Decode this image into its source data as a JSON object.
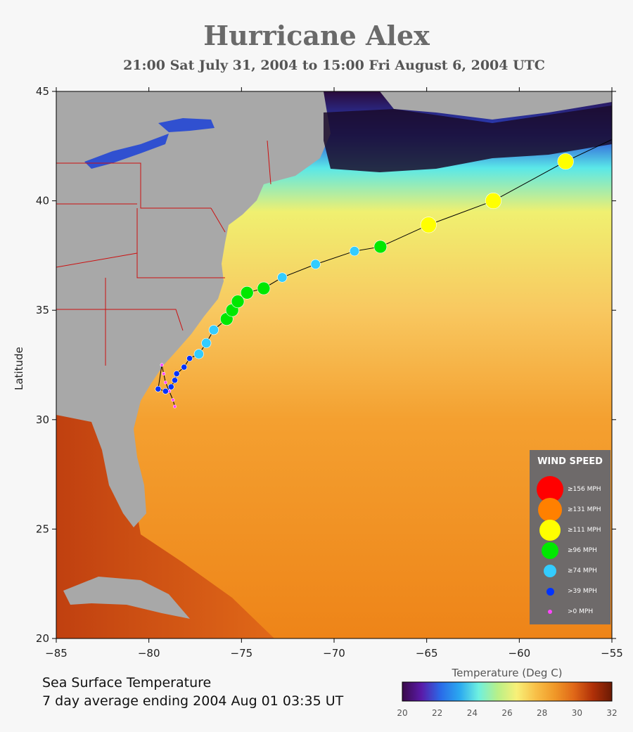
{
  "title": "Hurricane Alex",
  "subtitle": "21:00 Sat July 31, 2004 to 15:00 Fri August  6, 2004  UTC",
  "ylabel": "Latitude",
  "xaxis": {
    "ticks": [
      -85,
      -80,
      -75,
      -70,
      -65,
      -60,
      -55
    ],
    "labels": [
      "−85",
      "−80",
      "−75",
      "−70",
      "−65",
      "−60",
      "−55"
    ]
  },
  "yaxis": {
    "ticks": [
      20,
      25,
      30,
      35,
      40,
      45
    ],
    "labels": [
      "20",
      "25",
      "30",
      "35",
      "40",
      "45"
    ]
  },
  "extent": {
    "lon": [
      -85,
      -55
    ],
    "lat": [
      20,
      45
    ]
  },
  "sst_caption": {
    "line1": "Sea Surface Temperature",
    "line2": "7 day average ending 2004 Aug 01 03:35 UT"
  },
  "colorbar": {
    "title": "Temperature (Deg C)",
    "ticks": [
      20,
      22,
      24,
      26,
      28,
      30,
      32
    ],
    "labels": [
      "20",
      "22",
      "24",
      "26",
      "28",
      "30",
      "32"
    ],
    "colors": [
      "#3a0a4a",
      "#5a1aa8",
      "#2a6ae8",
      "#2aa8f0",
      "#6ef0e0",
      "#b8f088",
      "#f8f078",
      "#f8c048",
      "#f09828",
      "#e06818",
      "#b03008",
      "#6a1a04"
    ]
  },
  "legend": {
    "title": "WIND SPEED",
    "items": [
      {
        "label": "≥156 MPH",
        "color": "#ff0000",
        "size": 38
      },
      {
        "label": "≥131 MPH",
        "color": "#ff8000",
        "size": 34
      },
      {
        "label": "≥111 MPH",
        "color": "#ffff00",
        "size": 30
      },
      {
        "label": "≥96 MPH",
        "color": "#00e800",
        "size": 24
      },
      {
        "label": "≥74 MPH",
        "color": "#33ccff",
        "size": 18
      },
      {
        "label": ">39 MPH",
        "color": "#0033ff",
        "size": 11
      },
      {
        "label": ">0 MPH",
        "color": "#ff44ff",
        "size": 6
      }
    ]
  },
  "track": [
    {
      "lon": -78.6,
      "lat": 30.6,
      "cat": 6
    },
    {
      "lon": -78.7,
      "lat": 30.9,
      "cat": 6
    },
    {
      "lon": -78.9,
      "lat": 31.3,
      "cat": 6
    },
    {
      "lon": -79.1,
      "lat": 31.7,
      "cat": 6
    },
    {
      "lon": -79.2,
      "lat": 32.1,
      "cat": 6
    },
    {
      "lon": -79.3,
      "lat": 32.5,
      "cat": 6
    },
    {
      "lon": -79.5,
      "lat": 31.4,
      "cat": 5
    },
    {
      "lon": -79.1,
      "lat": 31.3,
      "cat": 5
    },
    {
      "lon": -78.8,
      "lat": 31.5,
      "cat": 5
    },
    {
      "lon": -78.6,
      "lat": 31.8,
      "cat": 5
    },
    {
      "lon": -78.5,
      "lat": 32.1,
      "cat": 5
    },
    {
      "lon": -78.1,
      "lat": 32.4,
      "cat": 5
    },
    {
      "lon": -77.8,
      "lat": 32.8,
      "cat": 5
    },
    {
      "lon": -77.3,
      "lat": 33.0,
      "cat": 4
    },
    {
      "lon": -76.9,
      "lat": 33.5,
      "cat": 4
    },
    {
      "lon": -76.5,
      "lat": 34.1,
      "cat": 4
    },
    {
      "lon": -75.8,
      "lat": 34.6,
      "cat": 3
    },
    {
      "lon": -75.5,
      "lat": 35.0,
      "cat": 3
    },
    {
      "lon": -75.2,
      "lat": 35.4,
      "cat": 3
    },
    {
      "lon": -74.7,
      "lat": 35.8,
      "cat": 3
    },
    {
      "lon": -73.8,
      "lat": 36.0,
      "cat": 3
    },
    {
      "lon": -72.8,
      "lat": 36.5,
      "cat": 4
    },
    {
      "lon": -71.0,
      "lat": 37.1,
      "cat": 4
    },
    {
      "lon": -68.9,
      "lat": 37.7,
      "cat": 4
    },
    {
      "lon": -67.5,
      "lat": 37.9,
      "cat": 3
    },
    {
      "lon": -64.9,
      "lat": 38.9,
      "cat": 2
    },
    {
      "lon": -61.4,
      "lat": 40.0,
      "cat": 2
    },
    {
      "lon": -57.5,
      "lat": 41.8,
      "cat": 2
    },
    {
      "lon": -55.0,
      "lat": 42.8,
      "cat": -1
    }
  ]
}
